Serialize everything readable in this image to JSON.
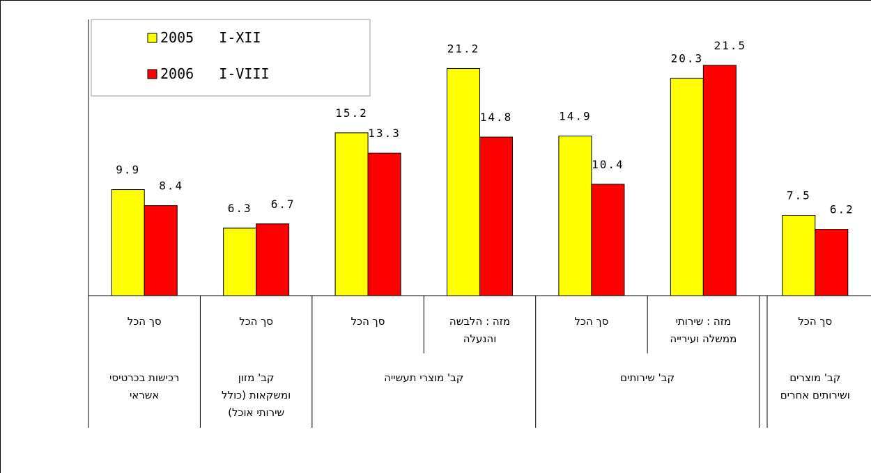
{
  "chart_data": {
    "type": "bar",
    "title": "",
    "xlabel": "",
    "ylabel": "",
    "ylim": [
      0,
      23.5
    ],
    "grid": false,
    "legend_position": "top-left",
    "series": [
      {
        "name": "2005   I-XII",
        "color": "#FFFF00",
        "values": [
          9.9,
          6.3,
          15.2,
          21.2,
          14.9,
          20.3,
          7.5
        ]
      },
      {
        "name": "2006   I-VIII",
        "color": "#FF0000",
        "values": [
          8.4,
          6.7,
          13.3,
          14.8,
          10.4,
          21.5,
          6.2
        ]
      }
    ],
    "categories": [
      {
        "lines": [
          "סך הכל"
        ]
      },
      {
        "lines": [
          "סך הכל"
        ]
      },
      {
        "lines": [
          "סך הכל"
        ]
      },
      {
        "lines": [
          "מזה : הלבשה",
          "והנעלה"
        ]
      },
      {
        "lines": [
          "סך הכל"
        ]
      },
      {
        "lines": [
          "מזה :  שירותי",
          "ממשלה ועירייה"
        ]
      },
      {
        "lines": [
          "סך הכל"
        ]
      }
    ],
    "groups": [
      {
        "span": 1,
        "lines": [
          "רכישות בכרטיסי",
          "אשראי"
        ]
      },
      {
        "span": 1,
        "lines": [
          "קב' מזון",
          "ומשקאות (כולל",
          "שירותי אוכל)"
        ]
      },
      {
        "span": 2,
        "lines": [
          "קב'  מוצרי תעשייה"
        ]
      },
      {
        "span": 2,
        "lines": [
          "קב'  שירותים"
        ]
      },
      {
        "span": 1,
        "lines": [
          "קב' מוצרים",
          "ושירותים אחרים"
        ]
      }
    ]
  }
}
